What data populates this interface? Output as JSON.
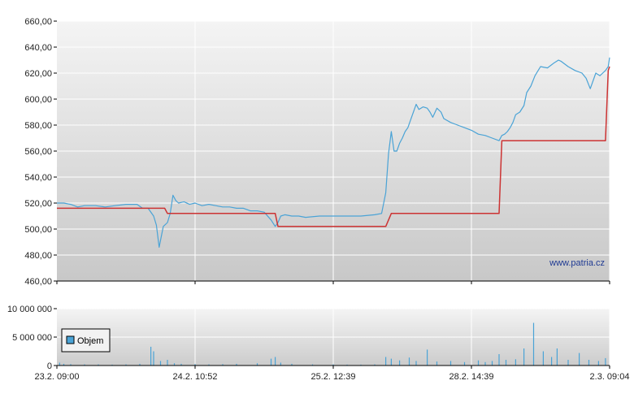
{
  "watermark": "www.patria.cz",
  "chart_data": [
    {
      "type": "line",
      "panel": "price",
      "ylim": [
        460,
        660
      ],
      "yticks": [
        460,
        480,
        500,
        520,
        540,
        560,
        580,
        600,
        620,
        640,
        660
      ],
      "ytick_labels": [
        "460,00",
        "480,00",
        "500,00",
        "520,00",
        "540,00",
        "560,00",
        "580,00",
        "600,00",
        "620,00",
        "640,00",
        "660,00"
      ],
      "xlim": [
        0,
        4
      ],
      "x_tick_positions": [
        0,
        1,
        2,
        3,
        4
      ],
      "x_tick_labels": [
        "23.2. 09:00",
        "24.2. 10:52",
        "25.2. 12:39",
        "28.2. 14:39",
        "2.3. 09:04"
      ],
      "grid": true,
      "colors": {
        "price": "#4aa3d6",
        "reference": "#cc3333"
      },
      "series": [
        {
          "x": [
            0,
            0.05,
            0.1,
            0.15,
            0.2,
            0.28,
            0.35,
            0.42,
            0.5,
            0.58,
            0.62,
            0.66,
            0.7,
            0.72,
            0.74,
            0.77,
            0.8,
            0.82,
            0.84,
            0.86,
            0.88,
            0.92,
            0.96,
            1.0,
            1.05,
            1.1,
            1.15,
            1.2,
            1.25,
            1.3,
            1.35,
            1.4,
            1.45,
            1.5,
            1.55,
            1.58,
            1.6,
            1.62,
            1.65,
            1.7,
            1.75,
            1.8,
            1.9,
            2.0,
            2.1,
            2.2,
            2.3,
            2.35,
            2.38,
            2.4,
            2.42,
            2.44,
            2.46,
            2.48,
            2.5,
            2.52,
            2.54,
            2.56,
            2.58,
            2.6,
            2.62,
            2.65,
            2.68,
            2.7,
            2.72,
            2.75,
            2.78,
            2.8,
            2.85,
            2.9,
            2.95,
            3.0,
            3.05,
            3.1,
            3.15,
            3.2,
            3.22,
            3.24,
            3.26,
            3.28,
            3.3,
            3.32,
            3.35,
            3.38,
            3.4,
            3.43,
            3.46,
            3.5,
            3.55,
            3.6,
            3.63,
            3.65,
            3.7,
            3.75,
            3.8,
            3.83,
            3.86,
            3.9,
            3.93,
            3.95,
            3.97,
            3.99,
            4.0
          ],
          "y": [
            520,
            520,
            519,
            517,
            518,
            518,
            517,
            518,
            519,
            519,
            516,
            516,
            510,
            503,
            486,
            502,
            505,
            512,
            526,
            522,
            520,
            521,
            519,
            520,
            518,
            519,
            518,
            517,
            517,
            516,
            516,
            514,
            514,
            513,
            507,
            502,
            505,
            510,
            511,
            510,
            510,
            509,
            510,
            510,
            510,
            510,
            511,
            512,
            528,
            558,
            575,
            560,
            560,
            566,
            570,
            575,
            578,
            584,
            590,
            596,
            592,
            594,
            593,
            590,
            586,
            593,
            590,
            585,
            582,
            580,
            578,
            576,
            573,
            572,
            570,
            568,
            572,
            573,
            575,
            578,
            582,
            588,
            590,
            595,
            605,
            610,
            618,
            625,
            624,
            628,
            630,
            629,
            625,
            622,
            620,
            616,
            608,
            620,
            618,
            620,
            622,
            625,
            632
          ]
        },
        {
          "x": [
            0,
            0.78,
            0.8,
            1.58,
            1.6,
            2.38,
            2.42,
            3.2,
            3.22,
            3.97,
            3.99,
            4.0
          ],
          "y": [
            516,
            516,
            512,
            512,
            502,
            502,
            512,
            512,
            568,
            568,
            622,
            625
          ]
        }
      ]
    },
    {
      "type": "bar",
      "panel": "volume",
      "ylim": [
        0,
        10000000
      ],
      "yticks": [
        0,
        5000000,
        10000000
      ],
      "ytick_labels": [
        "0",
        "5 000 000",
        "10 000 000"
      ],
      "legend": {
        "label": "Objem",
        "position": "left"
      },
      "colors": {
        "bar": "#4aa3d6"
      },
      "x": [
        0.02,
        0.05,
        0.1,
        0.2,
        0.3,
        0.4,
        0.5,
        0.6,
        0.68,
        0.7,
        0.75,
        0.8,
        0.85,
        0.9,
        1.0,
        1.1,
        1.2,
        1.3,
        1.45,
        1.55,
        1.58,
        1.62,
        1.7,
        1.85,
        2.0,
        2.1,
        2.2,
        2.3,
        2.38,
        2.42,
        2.48,
        2.55,
        2.6,
        2.68,
        2.75,
        2.85,
        2.95,
        3.05,
        3.1,
        3.15,
        3.2,
        3.25,
        3.32,
        3.38,
        3.45,
        3.52,
        3.58,
        3.62,
        3.7,
        3.78,
        3.85,
        3.92,
        3.97
      ],
      "values": [
        500000,
        300000,
        250000,
        200000,
        200000,
        150000,
        200000,
        300000,
        3300000,
        2500000,
        800000,
        1000000,
        400000,
        300000,
        250000,
        200000,
        250000,
        300000,
        400000,
        1200000,
        1500000,
        500000,
        300000,
        200000,
        200000,
        150000,
        150000,
        200000,
        1500000,
        1200000,
        900000,
        1400000,
        800000,
        2800000,
        700000,
        800000,
        600000,
        900000,
        600000,
        800000,
        2000000,
        1000000,
        1100000,
        3000000,
        7500000,
        2500000,
        1500000,
        3000000,
        1000000,
        2200000,
        1000000,
        800000,
        1300000
      ]
    }
  ]
}
